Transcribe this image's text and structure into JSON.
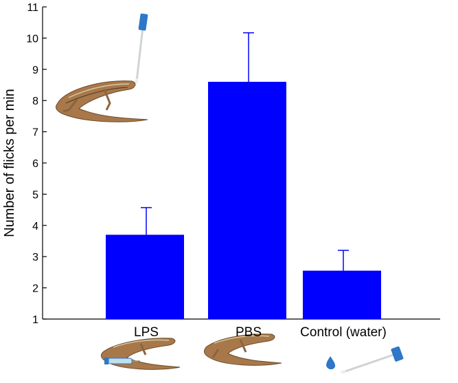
{
  "chart_data": {
    "type": "bar",
    "title": "",
    "xlabel": "",
    "ylabel": "Number of flicks per min",
    "categories": [
      "LPS",
      "PBS",
      "Control (water)"
    ],
    "values": [
      3.7,
      8.6,
      2.55
    ],
    "errors": [
      0.87,
      1.57,
      0.65
    ],
    "ylim": [
      1,
      11
    ],
    "yticks": [
      1,
      2,
      3,
      4,
      5,
      6,
      7,
      8,
      9,
      10,
      11
    ],
    "bar_color": "#0000ff",
    "error_bar_color": "#0000ff",
    "grid": false,
    "legend": "none",
    "illustrations": [
      "lizard",
      "lizard-with-syringe",
      "lizard",
      "water-drop",
      "swab"
    ]
  }
}
